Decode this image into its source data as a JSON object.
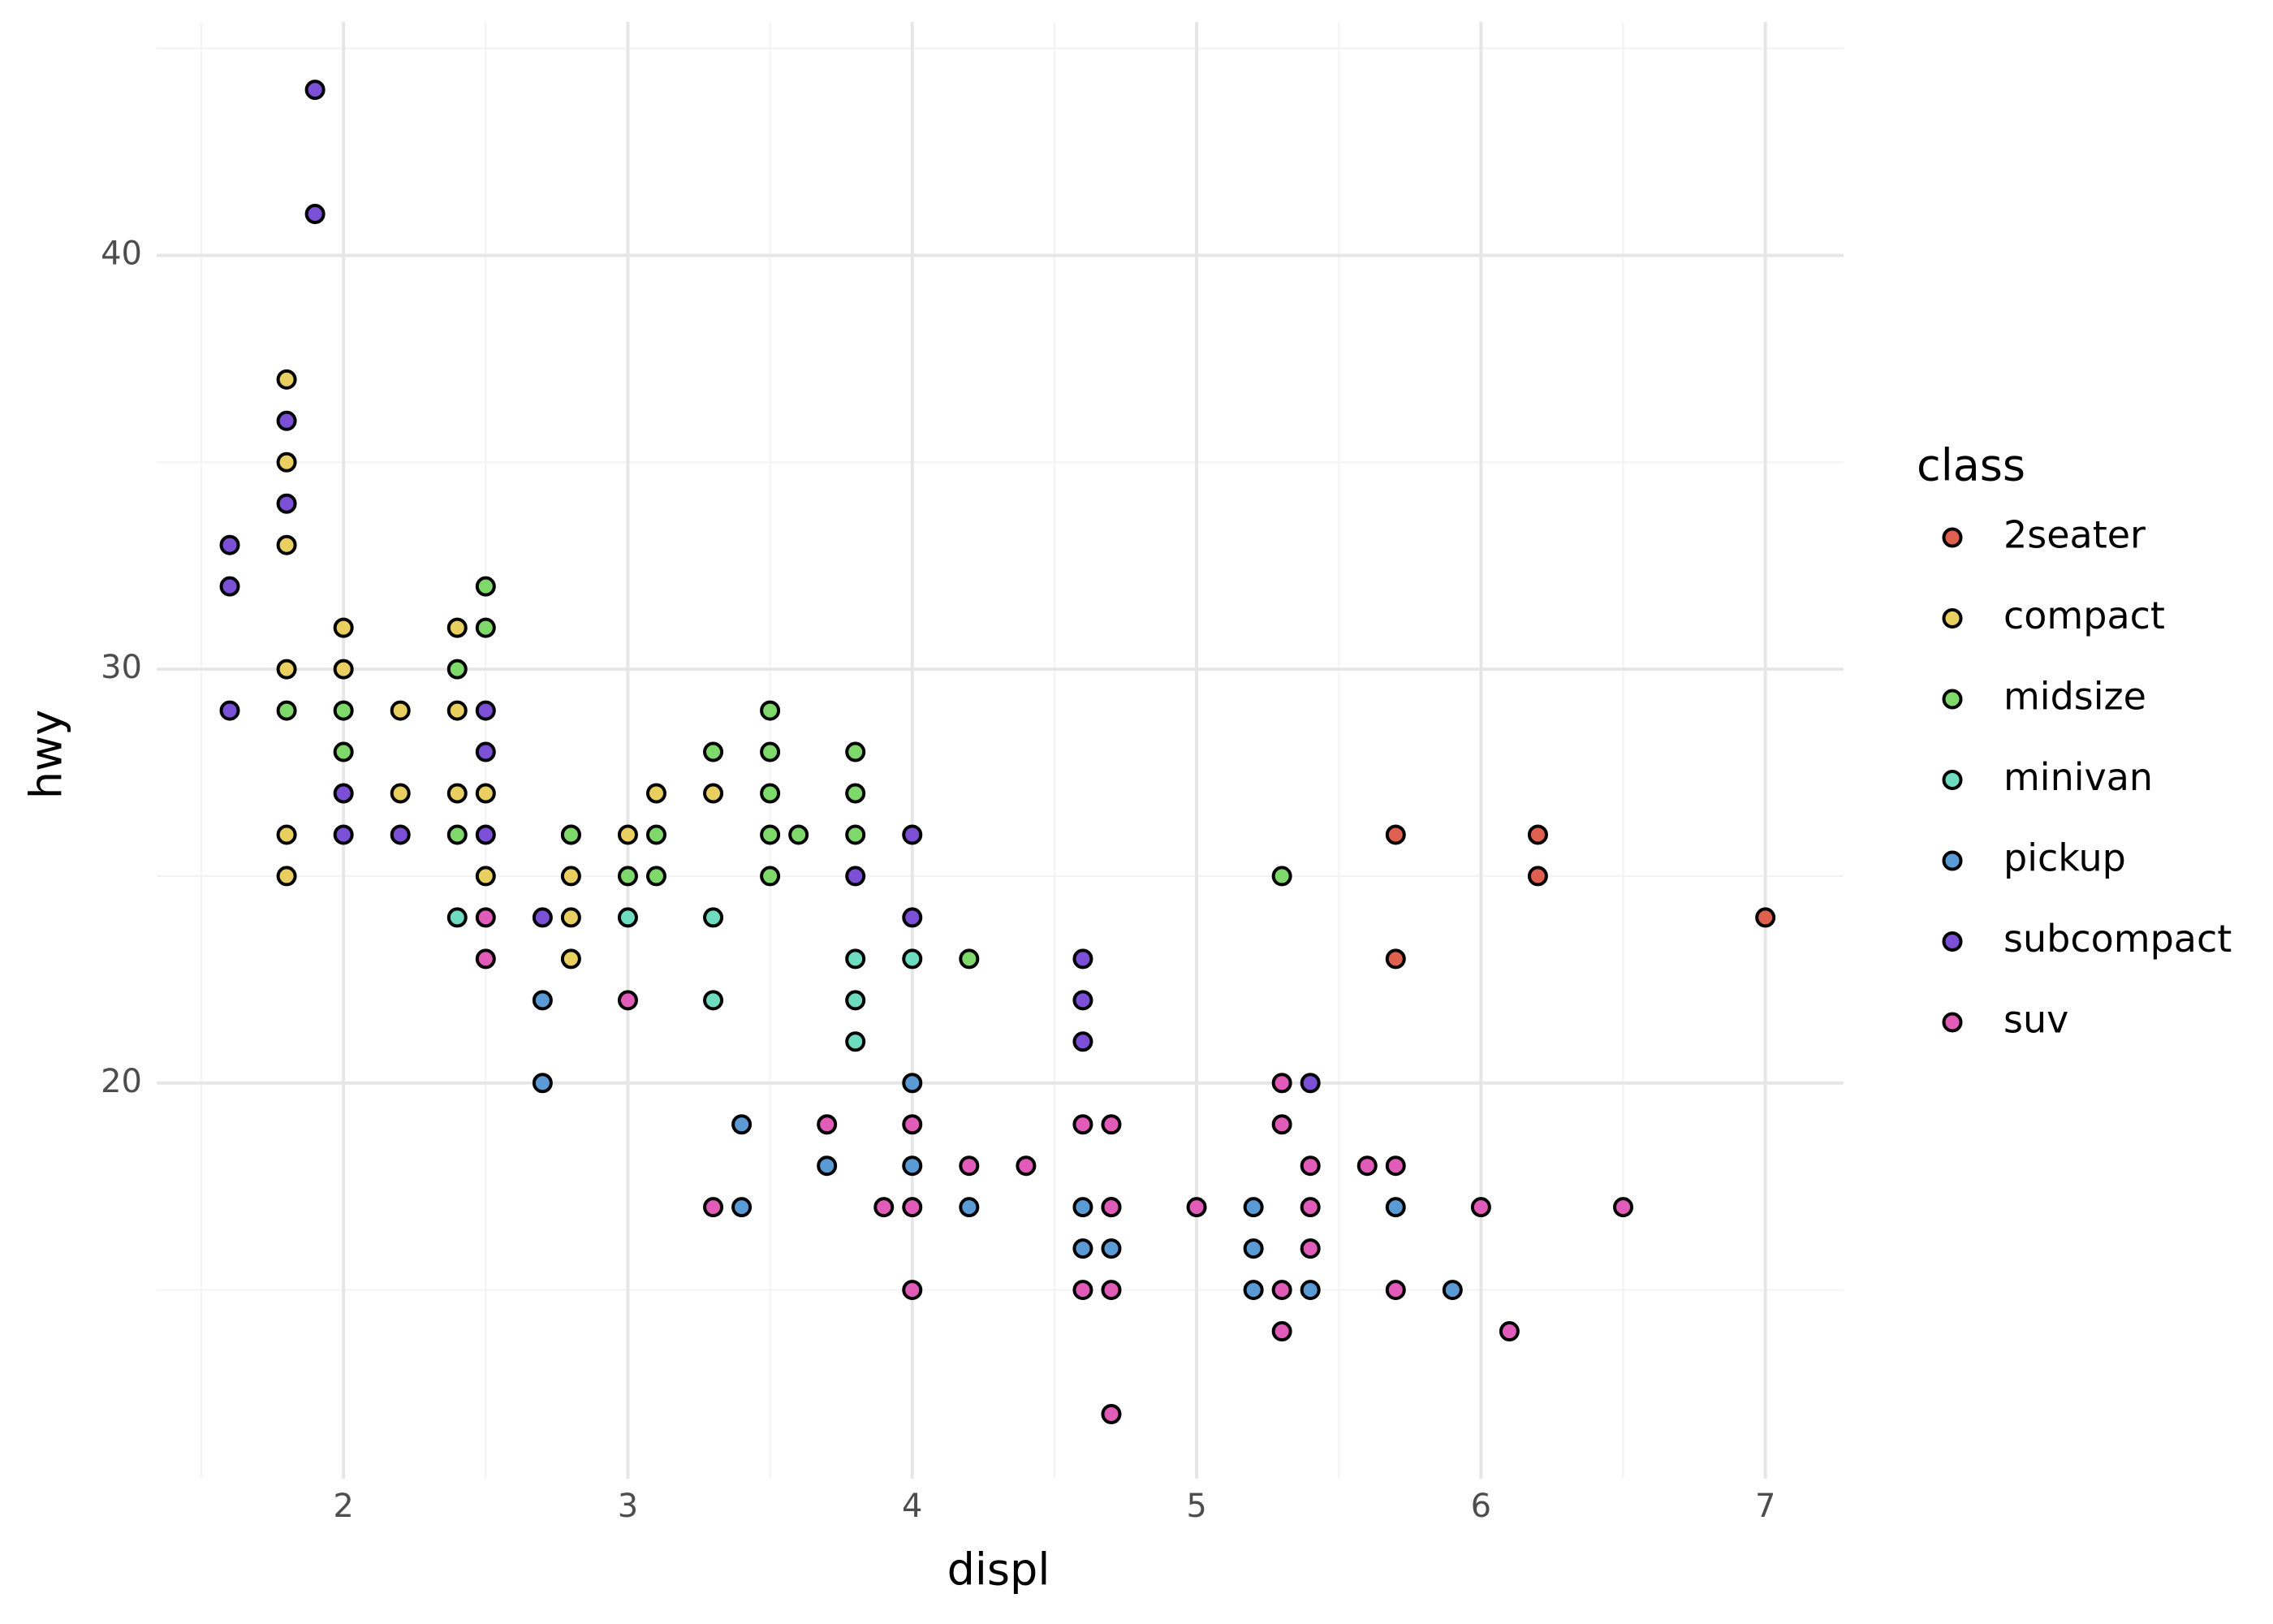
{
  "chart_data": {
    "type": "scatter",
    "x_label": "displ",
    "y_label": "hwy",
    "legend_title": "class",
    "legend_position": "right",
    "grid": true,
    "xlim": [
      1.343,
      7.275
    ],
    "ylim": [
      10.44,
      45.64
    ],
    "xticks": [
      2,
      3,
      4,
      5,
      6,
      7
    ],
    "yticks": [
      20,
      30,
      40
    ],
    "xminorticks": [
      1.5,
      2.5,
      3.5,
      4.5,
      5.5,
      6.5
    ],
    "yminorticks": [
      15,
      25,
      35,
      45
    ],
    "series": [
      {
        "name": "2seater",
        "color": "#e0604f",
        "x": [
          5.7,
          6.2,
          6.2,
          5.7,
          7
        ],
        "values": [
          26,
          26,
          25,
          23,
          24
        ]
      },
      {
        "name": "compact",
        "color": "#e8cf60",
        "x": [
          1.8,
          1.8,
          1.8,
          1.8,
          1.8,
          1.8,
          2,
          2,
          2.2,
          2.2,
          2.4,
          2.4,
          2.4,
          2.5,
          2.5,
          2.8,
          2.8,
          2.8,
          2.8,
          3,
          3.1,
          3.3
        ],
        "values": [
          37,
          35,
          33,
          30,
          26,
          25,
          31,
          30,
          29,
          27,
          31,
          29,
          27,
          27,
          25,
          26,
          25,
          24,
          23,
          26,
          27,
          27
        ]
      },
      {
        "name": "midsize",
        "color": "#7ed96a",
        "x": [
          1.8,
          2,
          2,
          2.4,
          2.4,
          2.5,
          2.5,
          2.8,
          3,
          3.1,
          3.1,
          3.3,
          3.5,
          3.5,
          3.5,
          3.5,
          3.5,
          3.6,
          3.8,
          3.8,
          3.8,
          4.2,
          5.3
        ],
        "values": [
          29,
          29,
          28,
          30,
          26,
          32,
          31,
          26,
          25,
          26,
          25,
          28,
          29,
          28,
          27,
          26,
          25,
          26,
          28,
          27,
          26,
          23,
          25
        ]
      },
      {
        "name": "minivan",
        "color": "#6edcc0",
        "x": [
          2.4,
          3,
          3.3,
          3.3,
          3.8,
          3.8,
          3.8,
          4
        ],
        "values": [
          24,
          24,
          24,
          22,
          23,
          22,
          21,
          23
        ]
      },
      {
        "name": "pickup",
        "color": "#5b9bd5",
        "x": [
          2.7,
          2.7,
          3.4,
          3.4,
          3.7,
          4,
          4,
          4.2,
          4.6,
          4.6,
          4.7,
          4.7,
          5.2,
          5.2,
          5.2,
          5.4,
          5.7,
          5.9
        ],
        "values": [
          22,
          20,
          19,
          17,
          18,
          20,
          18,
          17,
          17,
          16,
          17,
          16,
          17,
          16,
          15,
          15,
          17,
          15
        ]
      },
      {
        "name": "subcompact",
        "color": "#7b4fd6",
        "x": [
          1.6,
          1.6,
          1.6,
          1.8,
          1.8,
          1.9,
          1.9,
          2,
          2,
          2.2,
          2.5,
          2.5,
          2.5,
          2.7,
          3.8,
          4,
          4,
          4.6,
          4.6,
          4.6,
          5.4
        ],
        "values": [
          33,
          32,
          29,
          36,
          34,
          44,
          41,
          27,
          26,
          26,
          29,
          28,
          26,
          24,
          25,
          26,
          24,
          23,
          22,
          21,
          20
        ]
      },
      {
        "name": "suv",
        "color": "#e05cb8",
        "x": [
          2.5,
          2.5,
          3,
          3.3,
          3.7,
          3.9,
          4,
          4,
          4,
          4.2,
          4.4,
          4.6,
          4.6,
          4.7,
          4.7,
          4.7,
          4.7,
          5,
          5.3,
          5.3,
          5.3,
          5.3,
          5.4,
          5.4,
          5.4,
          5.6,
          5.7,
          5.7,
          6,
          6.1,
          6.5
        ],
        "values": [
          24,
          23,
          22,
          17,
          19,
          17,
          19,
          17,
          15,
          18,
          18,
          19,
          15,
          19,
          17,
          15,
          12,
          17,
          20,
          19,
          15,
          14,
          18,
          17,
          16,
          18,
          18,
          15,
          17,
          14,
          17
        ]
      }
    ]
  }
}
